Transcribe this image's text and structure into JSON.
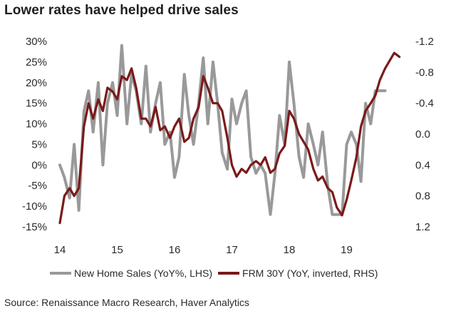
{
  "title": "Lower rates have helped drive sales",
  "source": "Source: Renaissance Macro Research, Haver Analytics",
  "chart_data": {
    "type": "line",
    "title": "Lower rates have helped drive sales",
    "x_axis": {
      "ticks": [
        "14",
        "15",
        "16",
        "17",
        "18",
        "19"
      ],
      "range": [
        2014.0,
        2019.95
      ]
    },
    "y_left": {
      "ticks": [
        "30%",
        "25%",
        "20%",
        "15%",
        "10%",
        "5%",
        "0%",
        "-5%",
        "-10%",
        "-15%"
      ],
      "range": [
        -15,
        30
      ],
      "unit": "%"
    },
    "y_right": {
      "ticks": [
        "-1.2",
        "-0.8",
        "-0.4",
        "0.0",
        "0.4",
        "0.8",
        "1.2"
      ],
      "range": [
        -1.2,
        1.2
      ],
      "inverted": true
    },
    "grid": false,
    "legend_position": "bottom",
    "series": [
      {
        "name": "New Home Sales (YoY%, LHS)",
        "axis": "left",
        "color": "#999999",
        "x": [
          2014.0,
          2014.08,
          2014.17,
          2014.25,
          2014.33,
          2014.42,
          2014.5,
          2014.58,
          2014.67,
          2014.75,
          2014.83,
          2014.92,
          2015.0,
          2015.08,
          2015.17,
          2015.25,
          2015.33,
          2015.42,
          2015.5,
          2015.58,
          2015.67,
          2015.75,
          2015.83,
          2015.92,
          2016.0,
          2016.08,
          2016.17,
          2016.25,
          2016.33,
          2016.42,
          2016.5,
          2016.58,
          2016.67,
          2016.75,
          2016.83,
          2016.92,
          2017.0,
          2017.08,
          2017.17,
          2017.25,
          2017.33,
          2017.42,
          2017.5,
          2017.58,
          2017.67,
          2017.75,
          2017.83,
          2017.92,
          2018.0,
          2018.08,
          2018.17,
          2018.25,
          2018.33,
          2018.42,
          2018.5,
          2018.58,
          2018.67,
          2018.75,
          2018.83,
          2018.92,
          2019.0,
          2019.08,
          2019.17,
          2019.25,
          2019.33,
          2019.42,
          2019.5,
          2019.58,
          2019.67
        ],
        "values": [
          0,
          -3,
          -8,
          5,
          -11,
          13,
          18,
          8,
          20,
          0,
          15,
          20,
          12,
          29,
          10,
          22,
          18,
          10,
          24,
          8,
          15,
          20,
          5,
          8,
          -3,
          2,
          22,
          12,
          5,
          15,
          26,
          10,
          25,
          15,
          3,
          -1,
          16,
          10,
          15,
          18,
          2,
          -2,
          0,
          -2,
          -12,
          -2,
          12,
          5,
          25,
          15,
          2,
          -3,
          10,
          5,
          0,
          8,
          -5,
          -12,
          -12,
          -12,
          5,
          8,
          5,
          -4,
          15,
          10,
          18,
          18,
          18
        ]
      },
      {
        "name": "FRM 30Y (YoY, inverted, RHS)",
        "axis": "right",
        "color": "#7a1a1a",
        "x": [
          2014.0,
          2014.08,
          2014.17,
          2014.25,
          2014.33,
          2014.42,
          2014.5,
          2014.58,
          2014.67,
          2014.75,
          2014.83,
          2014.92,
          2015.0,
          2015.08,
          2015.17,
          2015.25,
          2015.33,
          2015.42,
          2015.5,
          2015.58,
          2015.67,
          2015.75,
          2015.83,
          2015.92,
          2016.0,
          2016.08,
          2016.17,
          2016.25,
          2016.33,
          2016.42,
          2016.5,
          2016.58,
          2016.67,
          2016.75,
          2016.83,
          2016.92,
          2017.0,
          2017.08,
          2017.17,
          2017.25,
          2017.33,
          2017.42,
          2017.5,
          2017.58,
          2017.67,
          2017.75,
          2017.83,
          2017.92,
          2018.0,
          2018.08,
          2018.17,
          2018.25,
          2018.33,
          2018.42,
          2018.5,
          2018.58,
          2018.67,
          2018.75,
          2018.83,
          2018.92,
          2019.0,
          2019.08,
          2019.17,
          2019.25,
          2019.33,
          2019.42,
          2019.5,
          2019.58,
          2019.67,
          2019.75,
          2019.83,
          2019.92
        ],
        "values": [
          1.15,
          0.8,
          0.7,
          0.8,
          0.7,
          -0.1,
          -0.4,
          -0.2,
          -0.45,
          -0.3,
          -0.6,
          -0.55,
          -0.45,
          -0.75,
          -0.7,
          -0.85,
          -0.6,
          -0.2,
          -0.2,
          -0.1,
          -0.35,
          -0.05,
          -0.1,
          0.05,
          -0.1,
          -0.2,
          0.1,
          0.05,
          -0.2,
          -0.35,
          -0.75,
          -0.6,
          -0.4,
          -0.4,
          -0.3,
          0.05,
          0.4,
          0.55,
          0.45,
          0.5,
          0.4,
          0.35,
          0.4,
          0.3,
          0.5,
          0.45,
          0.25,
          0.15,
          -0.3,
          -0.2,
          0.0,
          0.1,
          0.2,
          0.45,
          0.6,
          0.55,
          0.7,
          0.75,
          0.95,
          1.05,
          0.85,
          0.6,
          0.3,
          -0.1,
          -0.3,
          -0.4,
          -0.5,
          -0.7,
          -0.85,
          -0.95,
          -1.05,
          -1.0
        ]
      }
    ]
  }
}
